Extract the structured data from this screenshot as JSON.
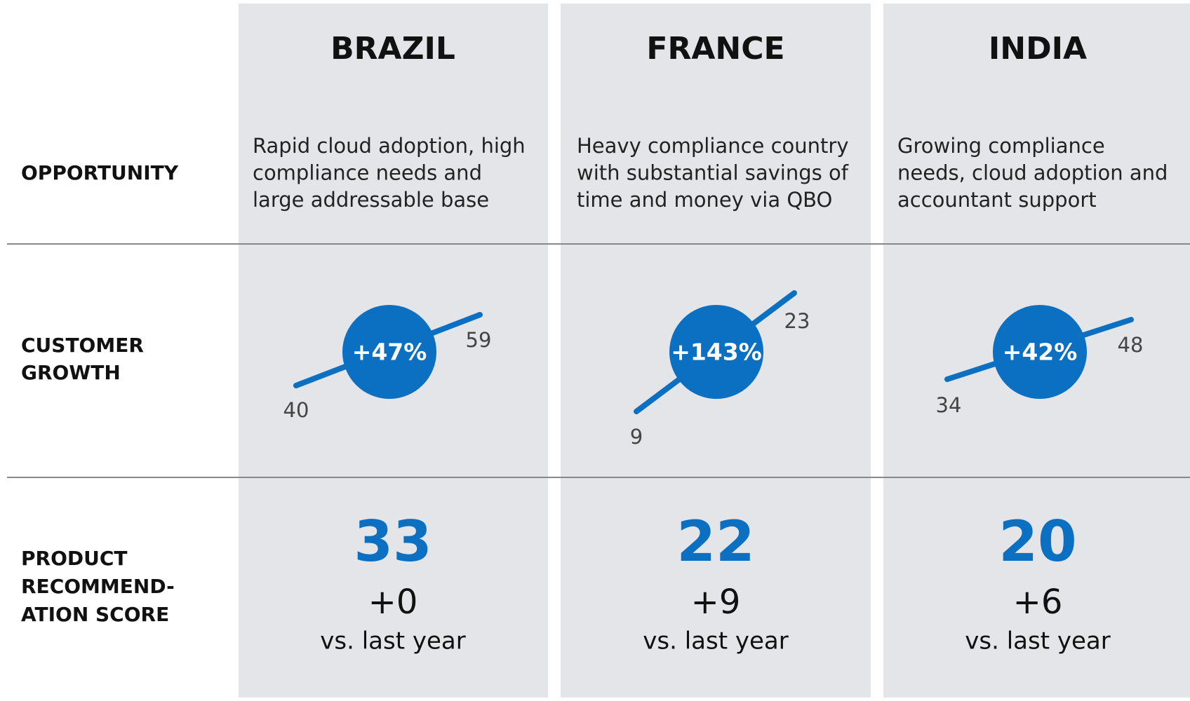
{
  "row_labels": {
    "opportunity": [
      "OPPORTUNITY"
    ],
    "customer_growth": [
      "CUSTOMER",
      "GROWTH"
    ],
    "score": [
      "PRODUCT",
      "RECOMMEND-",
      "ATION SCORE"
    ]
  },
  "columns": [
    {
      "name": "BRAZIL",
      "opportunity": [
        "Rapid cloud adoption, high",
        "compliance needs and",
        "large addressable base"
      ],
      "growth": {
        "start": 40,
        "end": 59,
        "change": "+47%"
      },
      "score": 33,
      "score_change": "+0",
      "comparison": "vs. last year"
    },
    {
      "name": "FRANCE",
      "opportunity": [
        "Heavy compliance country",
        "with substantial savings of",
        "time and money via QBO"
      ],
      "growth": {
        "start": 9,
        "end": 23,
        "change": "+143%"
      },
      "score": 22,
      "score_change": "+9",
      "comparison": "vs. last year"
    },
    {
      "name": "INDIA",
      "opportunity": [
        "Growing compliance",
        "needs, cloud adoption and",
        "accountant support"
      ],
      "growth": {
        "start": 34,
        "end": 48,
        "change": "+42%"
      },
      "score": 20,
      "score_change": "+6",
      "comparison": "vs. last year"
    }
  ]
}
